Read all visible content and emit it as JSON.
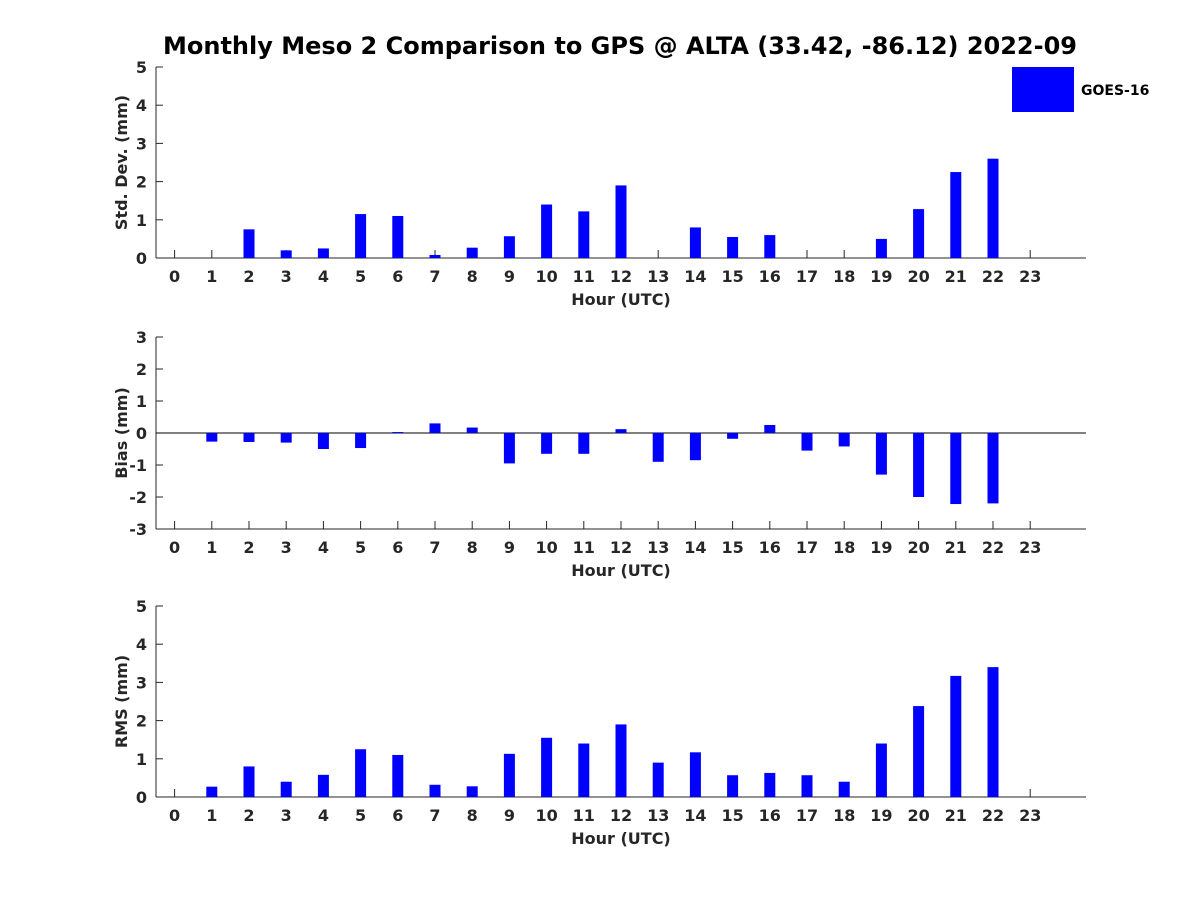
{
  "chart_data": {
    "type": "bar",
    "title": "Monthly Meso 2 Comparison to GPS @ ALTA (33.42, -86.12) 2022-09",
    "bar_color": "#0000ff",
    "legend": [
      "GOES-16"
    ],
    "legend_position": "top-right",
    "categories": [
      "0",
      "1",
      "2",
      "3",
      "4",
      "5",
      "6",
      "7",
      "8",
      "9",
      "10",
      "11",
      "12",
      "13",
      "14",
      "15",
      "16",
      "17",
      "18",
      "19",
      "20",
      "21",
      "22",
      "23"
    ],
    "panels": [
      {
        "ylabel": "Std. Dev. (mm)",
        "xlabel": "Hour (UTC)",
        "ylim": [
          0,
          5
        ],
        "yticks": [
          0,
          1,
          2,
          3,
          4,
          5
        ],
        "series": [
          {
            "name": "GOES-16",
            "values": [
              null,
              null,
              0.75,
              0.2,
              0.25,
              1.15,
              1.1,
              0.08,
              0.27,
              0.57,
              1.4,
              1.22,
              1.9,
              null,
              0.8,
              0.55,
              0.6,
              null,
              null,
              0.5,
              1.28,
              2.25,
              2.6,
              null
            ]
          }
        ]
      },
      {
        "ylabel": "Bias (mm)",
        "xlabel": "Hour (UTC)",
        "ylim": [
          -3,
          3
        ],
        "yticks": [
          -3,
          -2,
          -1,
          0,
          1,
          2,
          3
        ],
        "zero_line": true,
        "series": [
          {
            "name": "GOES-16",
            "values": [
              null,
              -0.27,
              -0.28,
              -0.3,
              -0.5,
              -0.47,
              0.03,
              0.3,
              0.17,
              -0.95,
              -0.65,
              -0.65,
              0.12,
              -0.9,
              -0.85,
              -0.18,
              0.25,
              -0.55,
              -0.42,
              -1.3,
              -2.0,
              -2.22,
              -2.2,
              null
            ]
          }
        ]
      },
      {
        "ylabel": "RMS (mm)",
        "xlabel": "Hour (UTC)",
        "ylim": [
          0,
          5
        ],
        "yticks": [
          0,
          1,
          2,
          3,
          4,
          5
        ],
        "series": [
          {
            "name": "GOES-16",
            "values": [
              null,
              0.27,
              0.8,
              0.4,
              0.58,
              1.25,
              1.1,
              0.32,
              0.28,
              1.13,
              1.55,
              1.4,
              1.9,
              0.9,
              1.17,
              0.57,
              0.63,
              0.57,
              0.4,
              1.4,
              2.38,
              3.17,
              3.4,
              null
            ]
          }
        ]
      }
    ]
  }
}
